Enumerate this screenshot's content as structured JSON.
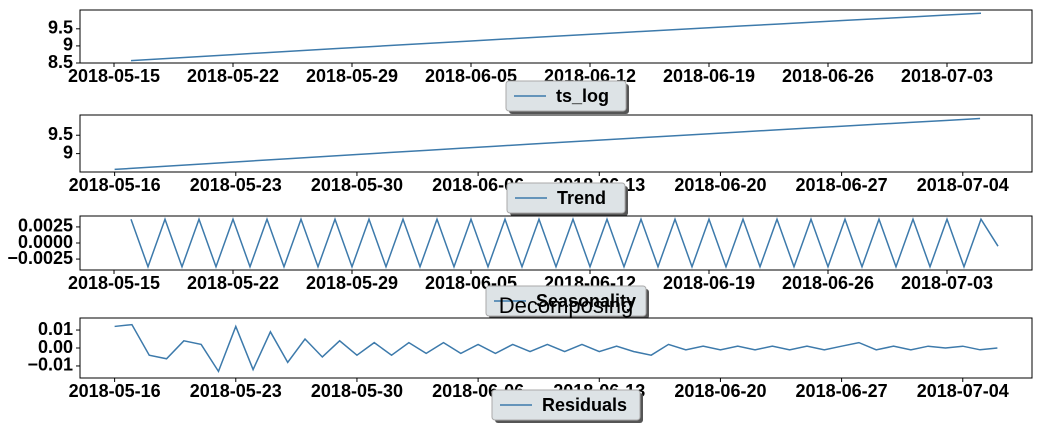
{
  "title": "Decomposing",
  "chart_data": [
    {
      "type": "line",
      "xlim": [
        "2018-05-13",
        "2018-07-08"
      ],
      "xticks": [
        "2018-05-15",
        "2018-05-22",
        "2018-05-29",
        "2018-06-05",
        "2018-06-12",
        "2018-06-19",
        "2018-06-26",
        "2018-07-03"
      ],
      "ylim": [
        8.5,
        10.05
      ],
      "yticks": [
        8.5,
        9.0,
        9.5
      ],
      "x": [
        "2018-05-16",
        "2018-05-18",
        "2018-05-20",
        "2018-05-22",
        "2018-05-24",
        "2018-05-26",
        "2018-05-28",
        "2018-05-30",
        "2018-06-01",
        "2018-06-03",
        "2018-06-05",
        "2018-06-07",
        "2018-06-09",
        "2018-06-11",
        "2018-06-13",
        "2018-06-15",
        "2018-06-17",
        "2018-06-19",
        "2018-06-21",
        "2018-06-23",
        "2018-06-25",
        "2018-06-27",
        "2018-06-29",
        "2018-07-01",
        "2018-07-03",
        "2018-07-05"
      ],
      "series": [
        {
          "name": "ts_log",
          "color": "#3d7aab",
          "values": [
            8.57,
            8.629,
            8.687,
            8.746,
            8.804,
            8.861,
            8.919,
            8.976,
            9.033,
            9.089,
            9.145,
            9.201,
            9.257,
            9.312,
            9.367,
            9.422,
            9.477,
            9.531,
            9.585,
            9.638,
            9.692,
            9.745,
            9.797,
            9.85,
            9.902,
            9.954
          ]
        }
      ]
    },
    {
      "type": "line",
      "xlim": [
        "2018-05-14",
        "2018-07-08"
      ],
      "xticks": [
        "2018-05-16",
        "2018-05-23",
        "2018-05-30",
        "2018-06-06",
        "2018-06-13",
        "2018-06-20",
        "2018-06-27",
        "2018-07-04"
      ],
      "ylim": [
        8.5,
        10.05
      ],
      "yticks": [
        9.0,
        9.5
      ],
      "x": [
        "2018-05-16",
        "2018-05-18",
        "2018-05-20",
        "2018-05-22",
        "2018-05-24",
        "2018-05-26",
        "2018-05-28",
        "2018-05-30",
        "2018-06-01",
        "2018-06-03",
        "2018-06-05",
        "2018-06-07",
        "2018-06-09",
        "2018-06-11",
        "2018-06-13",
        "2018-06-15",
        "2018-06-17",
        "2018-06-19",
        "2018-06-21",
        "2018-06-23",
        "2018-06-25",
        "2018-06-27",
        "2018-06-29",
        "2018-07-01",
        "2018-07-03",
        "2018-07-05"
      ],
      "series": [
        {
          "name": "Trend",
          "color": "#3d7aab",
          "values": [
            8.57,
            8.629,
            8.687,
            8.746,
            8.804,
            8.861,
            8.919,
            8.976,
            9.033,
            9.089,
            9.145,
            9.201,
            9.257,
            9.312,
            9.367,
            9.422,
            9.477,
            9.531,
            9.585,
            9.638,
            9.692,
            9.745,
            9.797,
            9.85,
            9.902,
            9.954
          ]
        }
      ]
    },
    {
      "type": "line",
      "xlim": [
        "2018-05-13",
        "2018-07-08"
      ],
      "xticks": [
        "2018-05-15",
        "2018-05-22",
        "2018-05-29",
        "2018-06-05",
        "2018-06-12",
        "2018-06-19",
        "2018-06-26",
        "2018-07-03"
      ],
      "ylim": [
        -0.0042,
        0.0042
      ],
      "yticks": [
        {
          "value": -0.0025,
          "label": "−0.0025"
        },
        {
          "value": 0,
          "label": "0.0000"
        },
        {
          "value": 0.0025,
          "label": "0.0025"
        }
      ],
      "x": [
        "2018-05-16",
        "2018-05-17",
        "2018-05-18",
        "2018-05-19",
        "2018-05-20",
        "2018-05-21",
        "2018-05-22",
        "2018-05-23",
        "2018-05-24",
        "2018-05-25",
        "2018-05-26",
        "2018-05-27",
        "2018-05-28",
        "2018-05-29",
        "2018-05-30",
        "2018-05-31",
        "2018-06-01",
        "2018-06-02",
        "2018-06-03",
        "2018-06-04",
        "2018-06-05",
        "2018-06-06",
        "2018-06-07",
        "2018-06-08",
        "2018-06-09",
        "2018-06-10",
        "2018-06-11",
        "2018-06-12",
        "2018-06-13",
        "2018-06-14",
        "2018-06-15",
        "2018-06-16",
        "2018-06-17",
        "2018-06-18",
        "2018-06-19",
        "2018-06-20",
        "2018-06-21",
        "2018-06-22",
        "2018-06-23",
        "2018-06-24",
        "2018-06-25",
        "2018-06-26",
        "2018-06-27",
        "2018-06-28",
        "2018-06-29",
        "2018-06-30",
        "2018-07-01",
        "2018-07-02",
        "2018-07-03",
        "2018-07-04",
        "2018-07-05",
        "2018-07-06"
      ],
      "series": [
        {
          "name": "Seasonality",
          "color": "#3d7aab",
          "values": [
            0.0037,
            -0.0037,
            0.0037,
            -0.0037,
            0.0037,
            -0.0037,
            0.0037,
            -0.0037,
            0.0037,
            -0.0037,
            0.0037,
            -0.0037,
            0.0037,
            -0.0037,
            0.0037,
            -0.0037,
            0.0037,
            -0.0037,
            0.0037,
            -0.0037,
            0.0037,
            -0.0037,
            0.0037,
            -0.0037,
            0.0037,
            -0.0037,
            0.0037,
            -0.0037,
            0.0037,
            -0.0037,
            0.0037,
            -0.0037,
            0.0037,
            -0.0037,
            0.0037,
            -0.0037,
            0.0037,
            -0.0037,
            0.0037,
            -0.0037,
            0.0037,
            -0.0037,
            0.0037,
            -0.0037,
            0.0037,
            -0.0037,
            0.0037,
            -0.0037,
            0.0037,
            -0.0037,
            0.0037,
            -0.0005
          ]
        }
      ]
    },
    {
      "type": "line",
      "xlim": [
        "2018-05-14",
        "2018-07-08"
      ],
      "xticks": [
        "2018-05-16",
        "2018-05-23",
        "2018-05-30",
        "2018-06-06",
        "2018-06-13",
        "2018-06-20",
        "2018-06-27",
        "2018-07-04"
      ],
      "ylim": [
        -0.0167,
        0.0167
      ],
      "yticks": [
        {
          "value": -0.01,
          "label": "−0.01"
        },
        {
          "value": 0,
          "label": "0.00"
        },
        {
          "value": 0.01,
          "label": "0.01"
        }
      ],
      "x": [
        "2018-05-16",
        "2018-05-17",
        "2018-05-18",
        "2018-05-19",
        "2018-05-20",
        "2018-05-21",
        "2018-05-22",
        "2018-05-23",
        "2018-05-24",
        "2018-05-25",
        "2018-05-26",
        "2018-05-27",
        "2018-05-28",
        "2018-05-29",
        "2018-05-30",
        "2018-05-31",
        "2018-06-01",
        "2018-06-02",
        "2018-06-03",
        "2018-06-04",
        "2018-06-05",
        "2018-06-06",
        "2018-06-07",
        "2018-06-08",
        "2018-06-09",
        "2018-06-10",
        "2018-06-11",
        "2018-06-12",
        "2018-06-13",
        "2018-06-14",
        "2018-06-15",
        "2018-06-16",
        "2018-06-17",
        "2018-06-18",
        "2018-06-19",
        "2018-06-20",
        "2018-06-21",
        "2018-06-22",
        "2018-06-23",
        "2018-06-24",
        "2018-06-25",
        "2018-06-26",
        "2018-06-27",
        "2018-06-28",
        "2018-06-29",
        "2018-06-30",
        "2018-07-01",
        "2018-07-02",
        "2018-07-03",
        "2018-07-04",
        "2018-07-05",
        "2018-07-06"
      ],
      "series": [
        {
          "name": "Residuals",
          "color": "#3d7aab",
          "values": [
            0.012,
            0.013,
            -0.004,
            -0.006,
            0.004,
            0.002,
            -0.013,
            0.012,
            -0.012,
            0.009,
            -0.008,
            0.005,
            -0.005,
            0.004,
            -0.004,
            0.003,
            -0.004,
            0.003,
            -0.003,
            0.003,
            -0.003,
            0.002,
            -0.003,
            0.002,
            -0.002,
            0.002,
            -0.002,
            0.002,
            -0.002,
            0.001,
            -0.002,
            -0.004,
            0.002,
            -0.001,
            0.001,
            -0.001,
            0.001,
            -0.001,
            0.001,
            -0.001,
            0.001,
            -0.001,
            0.001,
            0.003,
            -0.001,
            0.001,
            -0.001,
            0.001,
            0.0,
            0.001,
            -0.001,
            0.0
          ]
        }
      ]
    }
  ]
}
